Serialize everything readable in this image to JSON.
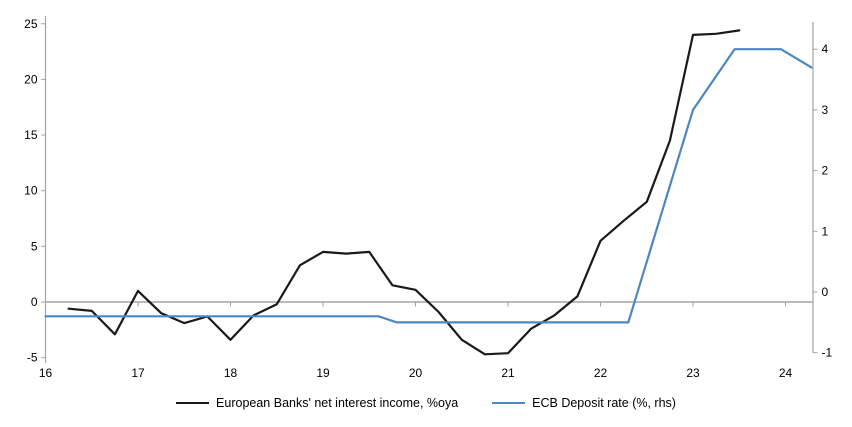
{
  "chart_data": {
    "type": "line",
    "title": "",
    "x_axis": {
      "ticks": [
        16,
        17,
        18,
        19,
        20,
        21,
        22,
        23,
        24
      ],
      "range": [
        16,
        24.3
      ],
      "baseline_value": 0
    },
    "left_axis": {
      "ticks": [
        -5,
        0,
        5,
        10,
        15,
        20,
        25
      ],
      "range": [
        -5,
        25
      ]
    },
    "right_axis": {
      "ticks": [
        -1,
        0,
        1,
        2,
        3,
        4
      ],
      "range": [
        -1,
        4.4
      ]
    },
    "grid": "zero-line-only",
    "legend_position": "bottom-center",
    "series": [
      {
        "name": "European Banks' net interest income, %oya",
        "axis": "left",
        "color": "#1a1a1a",
        "points": [
          [
            16.25,
            -0.6
          ],
          [
            16.5,
            -0.8
          ],
          [
            16.75,
            -2.9
          ],
          [
            17.0,
            1.0
          ],
          [
            17.25,
            -1.0
          ],
          [
            17.5,
            -1.9
          ],
          [
            17.75,
            -1.3
          ],
          [
            18.0,
            -3.4
          ],
          [
            18.25,
            -1.2
          ],
          [
            18.5,
            -0.2
          ],
          [
            18.75,
            3.3
          ],
          [
            19.0,
            4.5
          ],
          [
            19.25,
            4.35
          ],
          [
            19.5,
            4.5
          ],
          [
            19.75,
            1.5
          ],
          [
            20.0,
            1.1
          ],
          [
            20.25,
            -0.9
          ],
          [
            20.5,
            -3.4
          ],
          [
            20.75,
            -4.7
          ],
          [
            21.0,
            -4.6
          ],
          [
            21.25,
            -2.4
          ],
          [
            21.5,
            -1.2
          ],
          [
            21.75,
            0.5
          ],
          [
            22.0,
            5.5
          ],
          [
            22.25,
            7.3
          ],
          [
            22.5,
            9.0
          ],
          [
            22.75,
            14.5
          ],
          [
            23.0,
            24.0
          ],
          [
            23.25,
            24.1
          ],
          [
            23.5,
            24.4
          ]
        ]
      },
      {
        "name": "ECB Deposit rate (%, rhs)",
        "axis": "right",
        "color": "#4e86c0",
        "points": [
          [
            16.0,
            -0.4
          ],
          [
            19.6,
            -0.4
          ],
          [
            19.8,
            -0.5
          ],
          [
            22.3,
            -0.5
          ],
          [
            23.0,
            3.0
          ],
          [
            23.45,
            4.0
          ],
          [
            23.95,
            4.0
          ],
          [
            24.28,
            3.7
          ]
        ]
      }
    ]
  },
  "colors": {
    "background": "#ffffff",
    "axis": "#a3a3a3",
    "zero_line": "#a3a3a3",
    "tick_label": "#000000",
    "nii_line": "#1a1a1a",
    "ecb_line": "#4e86c0"
  }
}
